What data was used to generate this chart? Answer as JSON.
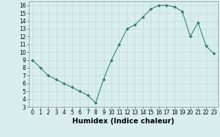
{
  "x": [
    0,
    1,
    2,
    3,
    4,
    5,
    6,
    7,
    8,
    9,
    10,
    11,
    12,
    13,
    14,
    15,
    16,
    17,
    18,
    19,
    20,
    21,
    22,
    23
  ],
  "y": [
    9,
    8,
    7,
    6.5,
    6,
    5.5,
    5,
    4.5,
    3.5,
    6.5,
    9,
    11,
    13,
    13.5,
    14.5,
    15.5,
    16,
    16,
    15.8,
    15.2,
    12,
    13.8,
    10.8,
    9.8
  ],
  "line_color": "#2e7d6e",
  "marker": "D",
  "marker_size": 2,
  "bg_color": "#d8eeee",
  "grid_color": "#c0d8d8",
  "xlabel": "Humidex (Indice chaleur)",
  "xlim": [
    -0.5,
    23.5
  ],
  "ylim": [
    3,
    16.5
  ],
  "yticks": [
    3,
    4,
    5,
    6,
    7,
    8,
    9,
    10,
    11,
    12,
    13,
    14,
    15,
    16
  ],
  "xticks": [
    0,
    1,
    2,
    3,
    4,
    5,
    6,
    7,
    8,
    9,
    10,
    11,
    12,
    13,
    14,
    15,
    16,
    17,
    18,
    19,
    20,
    21,
    22,
    23
  ],
  "tick_label_size": 5.5,
  "xlabel_size": 7.5,
  "xlabel_weight": "bold"
}
